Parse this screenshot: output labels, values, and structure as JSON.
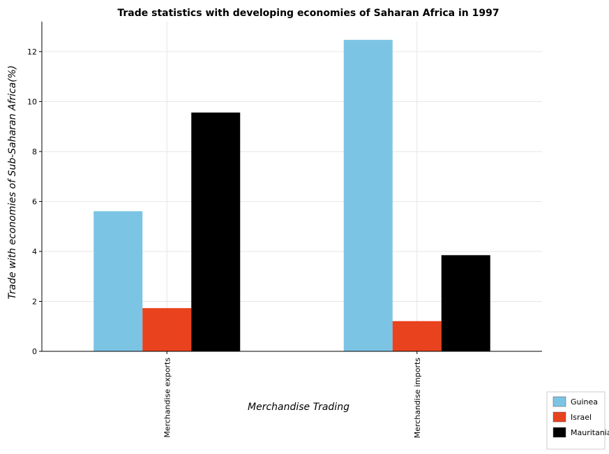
{
  "chart_data": {
    "type": "bar",
    "title": "Trade statistics with developing economies of Saharan Africa in 1997",
    "xlabel": "Merchandise Trading",
    "ylabel": "Trade with economies of Sub-Saharan Africa(%)",
    "categories": [
      "Merchandise exports",
      "Merchandise imports"
    ],
    "series": [
      {
        "name": "Guinea",
        "color": "#7cc4e4",
        "values": [
          5.61,
          12.47
        ]
      },
      {
        "name": "Israel",
        "color": "#e8431e",
        "values": [
          1.73,
          1.21
        ]
      },
      {
        "name": "Mauritania",
        "color": "#000000",
        "values": [
          9.56,
          3.85
        ]
      }
    ],
    "ylim": [
      0,
      13.2
    ],
    "yticks": [
      0,
      2,
      4,
      6,
      8,
      10,
      12
    ],
    "grid": true,
    "legend": "bottom-right"
  }
}
